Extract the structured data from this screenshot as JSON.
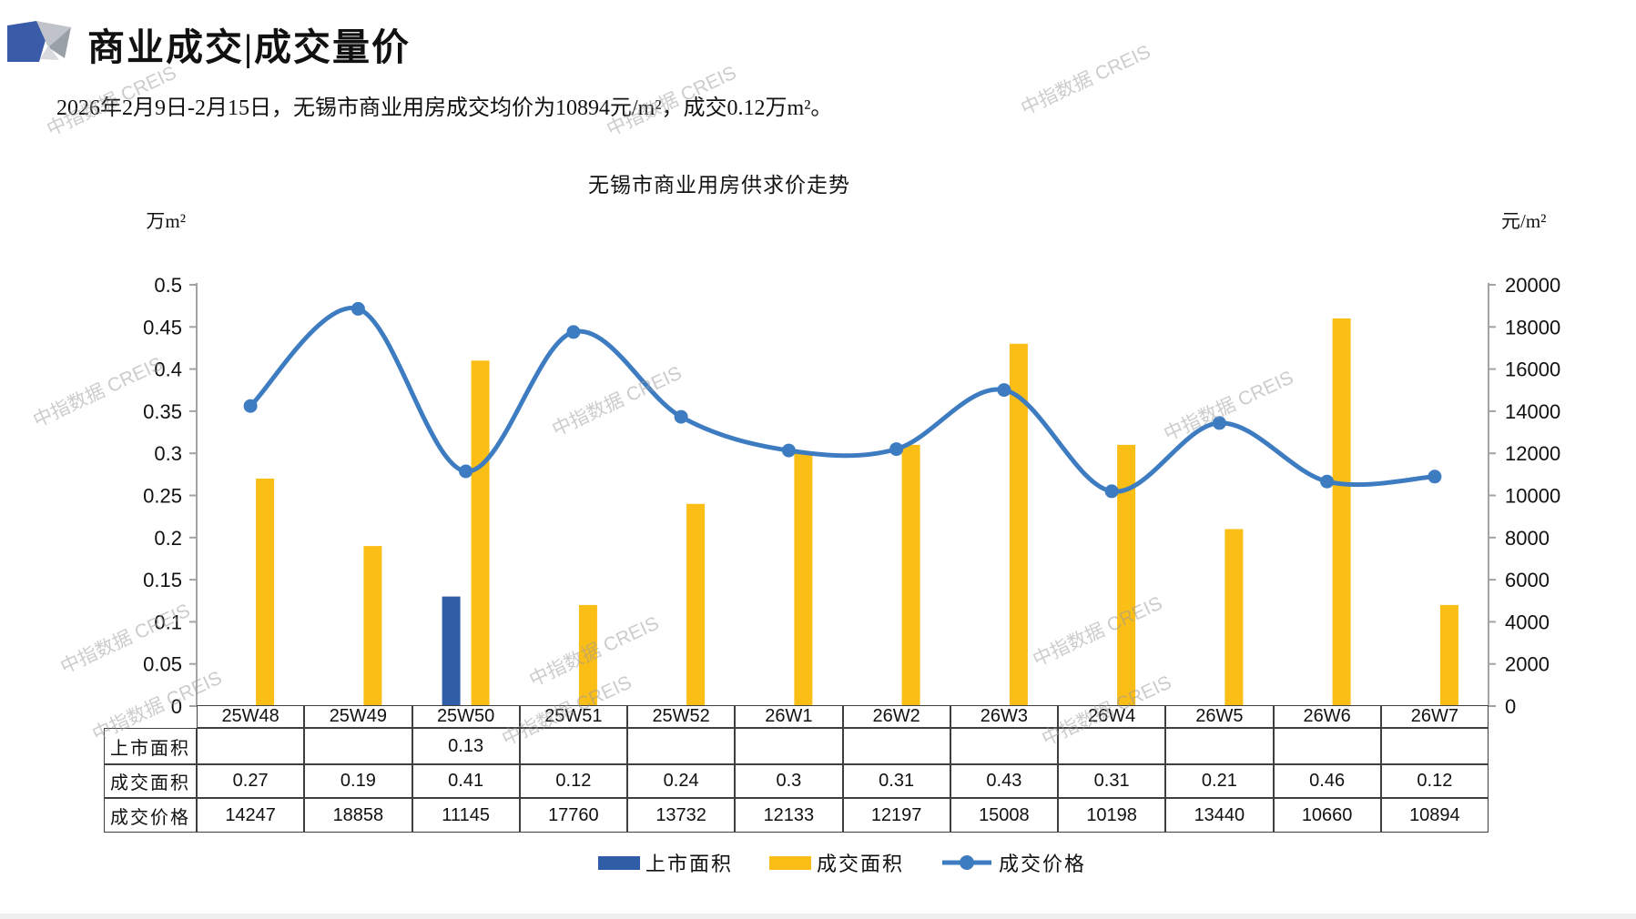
{
  "page": {
    "title_heading": "商业成交|成交量价",
    "subtitle": "2026年2月9日-2月15日，无锡市商业用房成交均价为10894元/m²，成交0.12万m²。",
    "watermark_text": "中指数据 CREIS",
    "brand_colors": {
      "logo_blue": "#3A5BA8",
      "logo_gray_light": "#C0C3C9",
      "logo_gray_dark": "#9AA0A8"
    }
  },
  "chart_data": {
    "type": "bar+line",
    "title": "无锡市商业用房供求价走势",
    "categories": [
      "25W48",
      "25W49",
      "25W50",
      "25W51",
      "25W52",
      "26W1",
      "26W2",
      "26W3",
      "26W4",
      "26W5",
      "26W6",
      "26W7"
    ],
    "series": [
      {
        "name": "上市面积",
        "type": "bar",
        "axis": "left",
        "color": "#2F5DA6",
        "values": [
          null,
          null,
          0.13,
          null,
          null,
          null,
          null,
          null,
          null,
          null,
          null,
          null
        ]
      },
      {
        "name": "成交面积",
        "type": "bar",
        "axis": "left",
        "color": "#FBBE16",
        "values": [
          0.27,
          0.19,
          0.41,
          0.12,
          0.24,
          0.3,
          0.31,
          0.43,
          0.31,
          0.21,
          0.46,
          0.12
        ]
      },
      {
        "name": "成交价格",
        "type": "line",
        "axis": "right",
        "color": "#3E7CC1",
        "values": [
          14247,
          18858,
          11145,
          17760,
          13732,
          12133,
          12197,
          15008,
          10198,
          13440,
          10660,
          10894
        ]
      }
    ],
    "left_axis": {
      "unit": "万m²",
      "min": 0,
      "max": 0.5,
      "step": 0.05,
      "ticks": [
        "0.5",
        "0.45",
        "0.4",
        "0.35",
        "0.3",
        "0.25",
        "0.2",
        "0.15",
        "0.1",
        "0.05",
        "0"
      ]
    },
    "right_axis": {
      "unit": "元/m²",
      "min": 0,
      "max": 20000,
      "step": 2000,
      "ticks": [
        "20000",
        "18000",
        "16000",
        "14000",
        "12000",
        "10000",
        "8000",
        "6000",
        "4000",
        "2000",
        "0"
      ]
    },
    "grid": false,
    "legend_position": "bottom",
    "legend": [
      "上市面积",
      "成交面积",
      "成交价格"
    ]
  },
  "table": {
    "columns": [
      "25W48",
      "25W49",
      "25W50",
      "25W51",
      "25W52",
      "26W1",
      "26W2",
      "26W3",
      "26W4",
      "26W5",
      "26W6",
      "26W7"
    ],
    "row_headers": [
      "上市面积",
      "成交面积",
      "成交价格"
    ],
    "rows": [
      [
        "",
        "",
        "0.13",
        "",
        "",
        "",
        "",
        "",
        "",
        "",
        "",
        ""
      ],
      [
        "0.27",
        "0.19",
        "0.41",
        "0.12",
        "0.24",
        "0.3",
        "0.31",
        "0.43",
        "0.31",
        "0.21",
        "0.46",
        "0.12"
      ],
      [
        "14247",
        "18858",
        "11145",
        "17760",
        "13732",
        "12133",
        "12197",
        "15008",
        "10198",
        "13440",
        "10660",
        "10894"
      ]
    ]
  }
}
